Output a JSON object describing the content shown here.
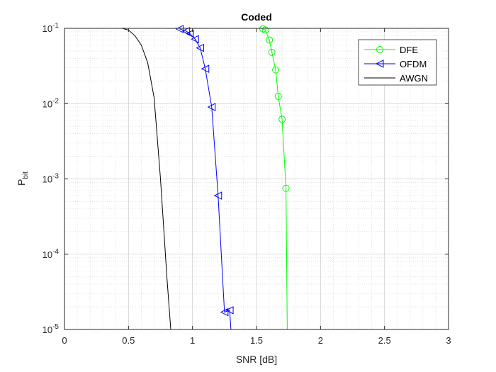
{
  "chart_data": {
    "type": "line",
    "title": "Coded",
    "xlabel": "SNR [dB]",
    "ylabel_main": "P",
    "ylabel_sub": "bit",
    "xlim": [
      0,
      3
    ],
    "ylim": [
      1e-05,
      0.1
    ],
    "yscale": "log",
    "grid": true,
    "minor_grid": true,
    "legend_position": "top-right",
    "x_ticks": [
      0,
      0.5,
      1,
      1.5,
      2,
      2.5,
      3
    ],
    "x_tick_labels": [
      "0",
      "0.5",
      "1",
      "1.5",
      "2",
      "2.5",
      "3"
    ],
    "y_ticks": [
      {
        "value": 0.1,
        "base": "10",
        "exp": "-1"
      },
      {
        "value": 0.01,
        "base": "10",
        "exp": "-2"
      },
      {
        "value": 0.001,
        "base": "10",
        "exp": "-3"
      },
      {
        "value": 0.0001,
        "base": "10",
        "exp": "-4"
      },
      {
        "value": 1e-05,
        "base": "10",
        "exp": "-5"
      }
    ],
    "series": [
      {
        "name": "DFE",
        "color": "#00ff00",
        "marker": "circle",
        "x": [
          1.55,
          1.57,
          1.6,
          1.62,
          1.65,
          1.67,
          1.7,
          1.73,
          1.74
        ],
        "y": [
          0.098,
          0.095,
          0.07,
          0.048,
          0.028,
          0.0125,
          0.0062,
          0.00075,
          1e-05
        ],
        "marker_count": 8
      },
      {
        "name": "OFDM",
        "color": "#0000ff",
        "marker": "triangle-left",
        "x": [
          0.9,
          0.95,
          0.98,
          1.02,
          1.06,
          1.1,
          1.15,
          1.2,
          1.25,
          1.29,
          1.3
        ],
        "y": [
          0.098,
          0.092,
          0.085,
          0.072,
          0.055,
          0.029,
          0.009,
          0.0006,
          1.7e-05,
          1.8e-05,
          1e-05
        ],
        "marker_count": 10
      },
      {
        "name": "AWGN",
        "color": "#000000",
        "marker": "none",
        "x": [
          0.45,
          0.5,
          0.55,
          0.6,
          0.65,
          0.7,
          0.75,
          0.8,
          0.83
        ],
        "y": [
          0.1,
          0.095,
          0.08,
          0.06,
          0.035,
          0.012,
          0.001,
          5e-05,
          1e-05
        ]
      }
    ]
  }
}
